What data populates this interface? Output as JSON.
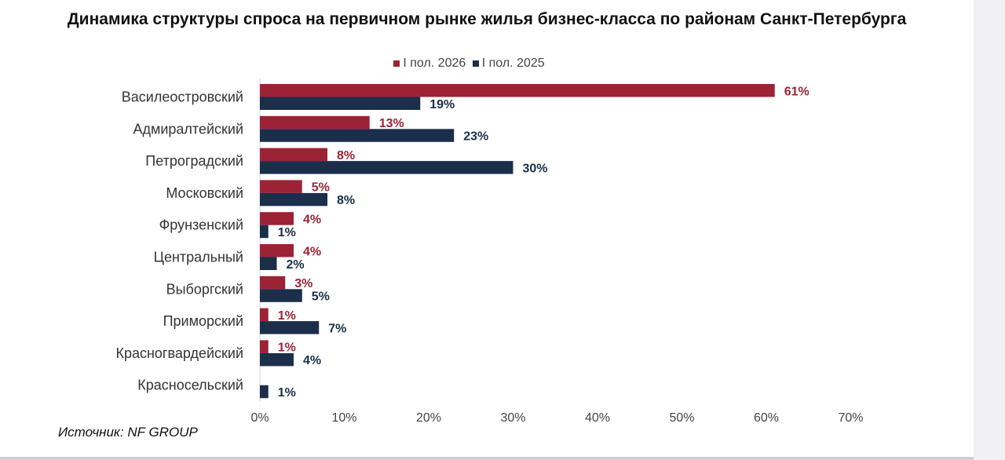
{
  "chart_data": {
    "type": "bar",
    "orientation": "horizontal",
    "title": "Динамика структуры спроса на первичном рынке жилья бизнес-класса по районам Санкт-Петербурга",
    "categories": [
      "Василеостровский",
      "Адмиралтейский",
      "Петроградский",
      "Московский",
      "Фрунзенский",
      "Центральный",
      "Выборгский",
      "Приморский",
      "Красногвардейский",
      "Красносельский"
    ],
    "series": [
      {
        "name": "I пол. 2026",
        "color": "#9b2335",
        "values": [
          61,
          13,
          8,
          5,
          4,
          4,
          3,
          1,
          1,
          null
        ],
        "labels": [
          "61%",
          "13%",
          "8%",
          "5%",
          "4%",
          "4%",
          "3%",
          "1%",
          "1%",
          ""
        ]
      },
      {
        "name": "I пол. 2025",
        "color": "#1b2e4a",
        "values": [
          19,
          23,
          30,
          8,
          1,
          2,
          5,
          7,
          4,
          1
        ],
        "labels": [
          "19%",
          "23%",
          "30%",
          "8%",
          "1%",
          "2%",
          "5%",
          "7%",
          "4%",
          "1%"
        ]
      }
    ],
    "xlim": [
      0,
      70
    ],
    "xticks": [
      "0%",
      "10%",
      "20%",
      "30%",
      "40%",
      "50%",
      "60%",
      "70%"
    ],
    "xlabel": "",
    "ylabel": "",
    "legend_position": "top-center",
    "grid": false
  },
  "source": "Источник: NF GROUP"
}
